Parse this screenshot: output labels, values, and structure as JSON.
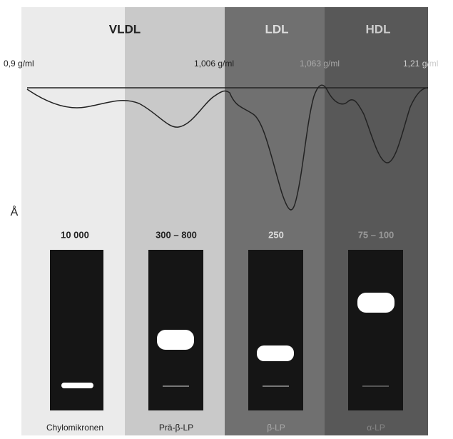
{
  "classes": [
    "VLDL",
    "LDL",
    "HDL"
  ],
  "densities": [
    "0,9 g/ml",
    "1,006 g/ml",
    "1,063 g/ml",
    "1,21 g/ml"
  ],
  "size_unit": "Å",
  "columns": [
    {
      "size": "10 000",
      "label": "Chylomikronen"
    },
    {
      "size": "300 – 800",
      "label": "Prä-β-LP"
    },
    {
      "size": "250",
      "label": "β-LP"
    },
    {
      "size": "75 – 100",
      "label": "α-LP"
    }
  ]
}
